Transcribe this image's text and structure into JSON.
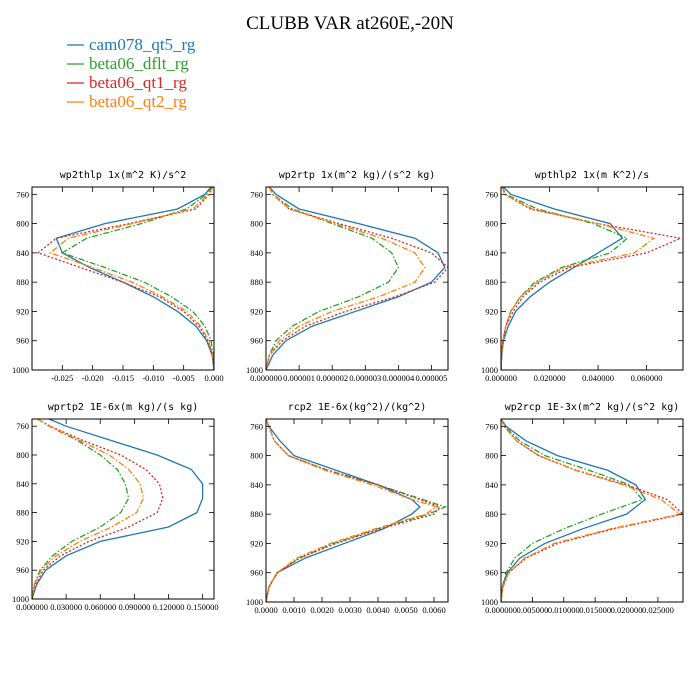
{
  "figure_title": "CLUBB VAR at260E,-20N",
  "legend": [
    {
      "name": "cam078_qt5_rg",
      "color": "#1f77b4",
      "dash": "solid"
    },
    {
      "name": "beta06_dflt_rg",
      "color": "#2ca02c",
      "dash": "dashdot"
    },
    {
      "name": "beta06_qt1_rg",
      "color": "#d62728",
      "dash": "dot"
    },
    {
      "name": "beta06_qt2_rg",
      "color": "#ff7f0e",
      "dash": "dashdot"
    }
  ],
  "chart_data": [
    {
      "type": "line",
      "title": "wp2thlp  1x(m^2 K)/s^2",
      "xlim": [
        -0.03,
        0.0
      ],
      "ylim": [
        1000,
        750
      ],
      "xticks": [
        -0.025,
        -0.02,
        -0.015,
        -0.01,
        -0.005,
        0.0
      ],
      "xticklabels": [
        "-0.025",
        "-0.020",
        "-0.015",
        "-0.010",
        "-0.005",
        "0.000"
      ],
      "yticks": [
        760,
        800,
        840,
        880,
        920,
        960,
        1000
      ],
      "y": [
        750,
        760,
        780,
        800,
        820,
        840,
        860,
        880,
        900,
        920,
        940,
        960,
        980,
        1000
      ],
      "series": [
        {
          "name": "cam078_qt5_rg",
          "values": [
            -0.0005,
            -0.0015,
            -0.006,
            -0.018,
            -0.026,
            -0.025,
            -0.0205,
            -0.015,
            -0.01,
            -0.006,
            -0.003,
            -0.0012,
            -0.0003,
            0.0
          ]
        },
        {
          "name": "beta06_dflt_rg",
          "values": [
            -0.0003,
            -0.0012,
            -0.0045,
            -0.012,
            -0.021,
            -0.025,
            -0.018,
            -0.0115,
            -0.007,
            -0.0035,
            -0.0015,
            -0.0005,
            -0.0001,
            0.0
          ]
        },
        {
          "name": "beta06_qt1_rg",
          "values": [
            -0.0002,
            -0.0008,
            -0.003,
            -0.014,
            -0.026,
            -0.029,
            -0.022,
            -0.015,
            -0.009,
            -0.005,
            -0.0025,
            -0.001,
            -0.0002,
            0.0
          ]
        },
        {
          "name": "beta06_qt2_rg",
          "values": [
            -0.0002,
            -0.0009,
            -0.0035,
            -0.0135,
            -0.024,
            -0.027,
            -0.02,
            -0.0135,
            -0.0085,
            -0.0045,
            -0.0022,
            -0.0009,
            -0.0002,
            0.0
          ]
        }
      ]
    },
    {
      "type": "line",
      "title": "wp2rtp  1x(m^2 kg)/(s^2 kg)",
      "xlim": [
        0.0,
        5.5e-06
      ],
      "ylim": [
        1000,
        750
      ],
      "xticks": [
        0.0,
        1e-06,
        2e-06,
        3e-06,
        4e-06,
        5e-06
      ],
      "xticklabels": [
        "0.000000",
        "0.000001",
        "0.000002",
        "0.000003",
        "0.000004",
        "0.000005"
      ],
      "yticks": [
        760,
        800,
        840,
        880,
        920,
        960,
        1000
      ],
      "y": [
        750,
        760,
        780,
        800,
        820,
        840,
        860,
        880,
        900,
        920,
        940,
        960,
        980,
        1000
      ],
      "series": [
        {
          "name": "cam078_qt5_rg",
          "values": [
            1e-07,
            3e-07,
            1e-06,
            2.8e-06,
            4.5e-06,
            5.2e-06,
            5.4e-06,
            5e-06,
            4e-06,
            2.7e-06,
            1.4e-06,
            6e-07,
            2e-07,
            0.0
          ]
        },
        {
          "name": "beta06_dflt_rg",
          "values": [
            1e-07,
            2e-07,
            8e-07,
            2e-06,
            3.2e-06,
            3.8e-06,
            4e-06,
            3.7e-06,
            2.8e-06,
            1.6e-06,
            8e-07,
            3e-07,
            1e-07,
            0.0
          ]
        },
        {
          "name": "beta06_qt1_rg",
          "values": [
            1e-07,
            2e-07,
            7e-07,
            2.2e-06,
            3.8e-06,
            5e-06,
            5.5e-06,
            5.1e-06,
            3.9e-06,
            2.4e-06,
            1.2e-06,
            5e-07,
            1e-07,
            0.0
          ]
        },
        {
          "name": "beta06_qt2_rg",
          "values": [
            1e-07,
            2e-07,
            7e-07,
            2.1e-06,
            3.5e-06,
            4.5e-06,
            4.8e-06,
            4.5e-06,
            3.4e-06,
            2e-06,
            1e-06,
            4e-07,
            1e-07,
            0.0
          ]
        }
      ]
    },
    {
      "type": "line",
      "title": "wpthlp2  1x(m K^2)/s",
      "xlim": [
        0.0,
        0.075
      ],
      "ylim": [
        1000,
        750
      ],
      "xticks": [
        0.0,
        0.02,
        0.04,
        0.06
      ],
      "xticklabels": [
        "0.000000",
        "0.020000",
        "0.040000",
        "0.060000"
      ],
      "yticks": [
        760,
        800,
        840,
        880,
        920,
        960,
        1000
      ],
      "y": [
        750,
        760,
        780,
        800,
        820,
        840,
        860,
        880,
        900,
        920,
        940,
        960,
        980,
        1000
      ],
      "series": [
        {
          "name": "cam078_qt5_rg",
          "values": [
            0.001,
            0.004,
            0.022,
            0.045,
            0.05,
            0.04,
            0.03,
            0.02,
            0.012,
            0.006,
            0.003,
            0.001,
            0.0003,
            0.0
          ]
        },
        {
          "name": "beta06_dflt_rg",
          "values": [
            0.0005,
            0.002,
            0.015,
            0.038,
            0.052,
            0.045,
            0.025,
            0.014,
            0.008,
            0.004,
            0.002,
            0.0008,
            0.0002,
            0.0
          ]
        },
        {
          "name": "beta06_qt1_rg",
          "values": [
            0.0005,
            0.0015,
            0.012,
            0.04,
            0.074,
            0.06,
            0.028,
            0.016,
            0.009,
            0.005,
            0.002,
            0.0008,
            0.0002,
            0.0
          ]
        },
        {
          "name": "beta06_qt2_rg",
          "values": [
            0.0005,
            0.0015,
            0.013,
            0.04,
            0.063,
            0.055,
            0.026,
            0.015,
            0.008,
            0.004,
            0.002,
            0.0008,
            0.0002,
            0.0
          ]
        }
      ]
    },
    {
      "type": "line",
      "title": "wprtp2  1E-6x(m kg)/(s kg)",
      "xlim": [
        0.0,
        0.16
      ],
      "ylim": [
        1000,
        750
      ],
      "xticks": [
        0.0,
        0.03,
        0.06,
        0.09,
        0.12,
        0.15
      ],
      "xticklabels": [
        "0.000000",
        "0.030000",
        "0.060000",
        "0.090000",
        "0.120000",
        "0.150000"
      ],
      "yticks": [
        760,
        800,
        840,
        880,
        920,
        960,
        1000
      ],
      "y": [
        750,
        760,
        780,
        800,
        820,
        840,
        860,
        880,
        900,
        920,
        940,
        960,
        980,
        1000
      ],
      "series": [
        {
          "name": "cam078_qt5_rg",
          "values": [
            0.015,
            0.03,
            0.07,
            0.11,
            0.14,
            0.15,
            0.15,
            0.145,
            0.12,
            0.06,
            0.03,
            0.012,
            0.004,
            0.0
          ]
        },
        {
          "name": "beta06_dflt_rg",
          "values": [
            0.005,
            0.015,
            0.04,
            0.06,
            0.075,
            0.082,
            0.085,
            0.078,
            0.06,
            0.035,
            0.018,
            0.007,
            0.002,
            0.0
          ]
        },
        {
          "name": "beta06_qt1_rg",
          "values": [
            0.005,
            0.016,
            0.045,
            0.078,
            0.1,
            0.112,
            0.115,
            0.11,
            0.085,
            0.05,
            0.025,
            0.01,
            0.003,
            0.0
          ]
        },
        {
          "name": "beta06_qt2_rg",
          "values": [
            0.005,
            0.015,
            0.042,
            0.068,
            0.085,
            0.095,
            0.098,
            0.092,
            0.07,
            0.042,
            0.021,
            0.008,
            0.002,
            0.0
          ]
        }
      ]
    },
    {
      "type": "line",
      "title": "rcp2  1E-6x(kg^2)/(kg^2)",
      "xlim": [
        0.0,
        0.0065
      ],
      "ylim": [
        1000,
        750
      ],
      "xticks": [
        0.0,
        0.001,
        0.002,
        0.003,
        0.004,
        0.005,
        0.006
      ],
      "xticklabels": [
        "0.0000",
        "0.0010",
        "0.0020",
        "0.0030",
        "0.0040",
        "0.0050",
        "0.0060"
      ],
      "yticks": [
        760,
        800,
        840,
        880,
        920,
        960,
        1000
      ],
      "y": [
        750,
        760,
        780,
        800,
        820,
        840,
        860,
        870,
        880,
        900,
        920,
        940,
        960,
        980,
        1000
      ],
      "series": [
        {
          "name": "cam078_qt5_rg",
          "values": [
            0.0,
            0.0001,
            0.0005,
            0.001,
            0.0025,
            0.004,
            0.0052,
            0.0055,
            0.0052,
            0.0042,
            0.0028,
            0.0014,
            0.0004,
            0.0001,
            0.0
          ]
        },
        {
          "name": "beta06_dflt_rg",
          "values": [
            0.0,
            0.0001,
            0.0003,
            0.0008,
            0.0022,
            0.004,
            0.0056,
            0.0064,
            0.0058,
            0.004,
            0.0024,
            0.0012,
            0.0004,
            0.0001,
            0.0
          ]
        },
        {
          "name": "beta06_qt1_rg",
          "values": [
            0.0,
            0.0001,
            0.0003,
            0.0008,
            0.0022,
            0.004,
            0.0055,
            0.0062,
            0.006,
            0.0041,
            0.0025,
            0.0012,
            0.0004,
            0.0001,
            0.0
          ]
        },
        {
          "name": "beta06_qt2_rg",
          "values": [
            0.0,
            0.0001,
            0.0003,
            0.0008,
            0.0021,
            0.0038,
            0.0052,
            0.0061,
            0.0057,
            0.0039,
            0.0023,
            0.0011,
            0.0004,
            0.0001,
            0.0
          ]
        }
      ]
    },
    {
      "type": "line",
      "title": "wp2rcp  1E-3x(m^2 kg)/(s^2 kg)",
      "xlim": [
        0.0,
        0.029
      ],
      "ylim": [
        1000,
        750
      ],
      "xticks": [
        0.0,
        0.005,
        0.01,
        0.015,
        0.02,
        0.025
      ],
      "xticklabels": [
        "0.000000",
        "0.005000",
        "0.010000",
        "0.015000",
        "0.020000",
        "0.025000"
      ],
      "yticks": [
        760,
        800,
        840,
        880,
        920,
        960,
        1000
      ],
      "y": [
        750,
        760,
        780,
        800,
        820,
        840,
        860,
        880,
        900,
        920,
        940,
        960,
        980,
        1000
      ],
      "series": [
        {
          "name": "cam078_qt5_rg",
          "values": [
            0.0,
            0.0008,
            0.004,
            0.009,
            0.017,
            0.0215,
            0.023,
            0.02,
            0.013,
            0.007,
            0.003,
            0.001,
            0.0002,
            0.0
          ]
        },
        {
          "name": "beta06_dflt_rg",
          "values": [
            0.0,
            0.0006,
            0.003,
            0.007,
            0.014,
            0.0205,
            0.0225,
            0.016,
            0.01,
            0.005,
            0.0022,
            0.0008,
            0.0002,
            0.0
          ]
        },
        {
          "name": "beta06_qt1_rg",
          "values": [
            0.0,
            0.0005,
            0.0025,
            0.006,
            0.012,
            0.02,
            0.0265,
            0.029,
            0.018,
            0.009,
            0.004,
            0.0012,
            0.0003,
            0.0
          ]
        },
        {
          "name": "beta06_qt2_rg",
          "values": [
            0.0,
            0.0005,
            0.0025,
            0.006,
            0.0118,
            0.0195,
            0.0255,
            0.0285,
            0.0175,
            0.0085,
            0.0038,
            0.0012,
            0.0003,
            0.0
          ]
        }
      ]
    }
  ]
}
